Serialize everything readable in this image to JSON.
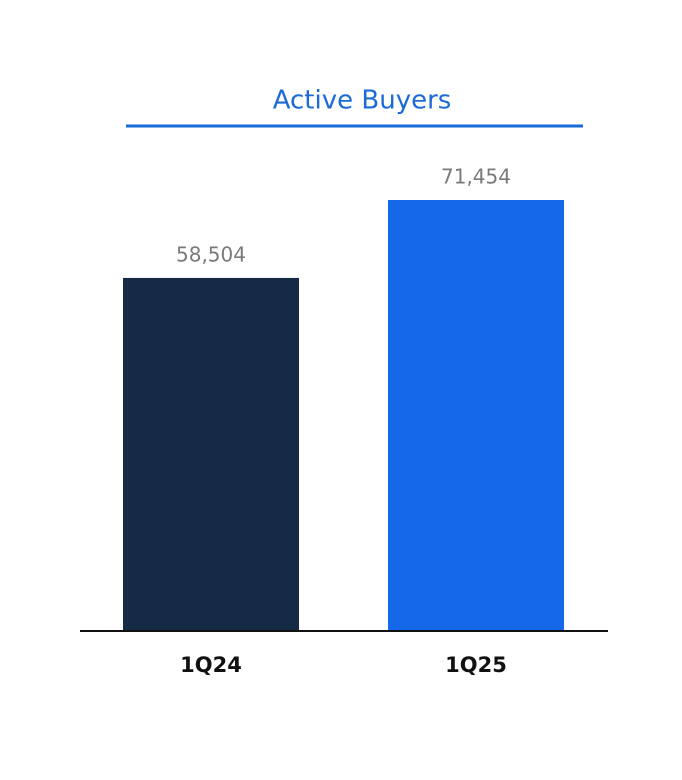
{
  "chart_data": {
    "type": "bar",
    "title": "Active Buyers",
    "categories": [
      "1Q24",
      "1Q25"
    ],
    "values": [
      58504,
      71454
    ],
    "value_labels": [
      "58,504",
      "71,454"
    ],
    "colors": [
      "#142a45",
      "#1469eb"
    ]
  }
}
